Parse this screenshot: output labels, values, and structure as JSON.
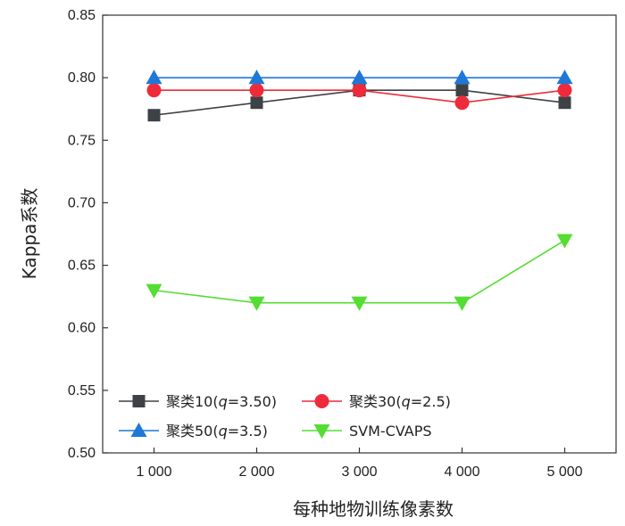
{
  "chart_data": {
    "type": "line",
    "title": "",
    "xlabel": "每种地物训练像素数",
    "ylabel": "Kappa系数",
    "x": [
      1000,
      2000,
      3000,
      4000,
      5000
    ],
    "x_tick_labels": [
      "1 000",
      "2 000",
      "3 000",
      "4 000",
      "5 000"
    ],
    "ylim": [
      0.5,
      0.85
    ],
    "y_ticks": [
      0.5,
      0.55,
      0.6,
      0.65,
      0.7,
      0.75,
      0.8,
      0.85
    ],
    "y_tick_labels": [
      "0.50",
      "0.55",
      "0.60",
      "0.65",
      "0.70",
      "0.75",
      "0.80",
      "0.85"
    ],
    "grid": false,
    "legend_position": "bottom-left",
    "series": [
      {
        "name": "聚类10(q=3.50)",
        "legend_parts": [
          "聚类10(",
          "q",
          "=3.50)"
        ],
        "color": "#3d4246",
        "marker": "square",
        "values": [
          0.77,
          0.78,
          0.79,
          0.79,
          0.78
        ]
      },
      {
        "name": "聚类30(q=2.5)",
        "legend_parts": [
          "聚类30(",
          "q",
          "=2.5)"
        ],
        "color": "#ee2b3b",
        "marker": "circle",
        "values": [
          0.79,
          0.79,
          0.79,
          0.78,
          0.79
        ]
      },
      {
        "name": "聚类50(q=3.5)",
        "legend_parts": [
          "聚类50(",
          "q",
          "=3.5)"
        ],
        "color": "#1f77d8",
        "marker": "triangle-up",
        "values": [
          0.8,
          0.8,
          0.8,
          0.8,
          0.8
        ]
      },
      {
        "name": "SVM-CVAPS",
        "legend_parts": [
          "SVM-CVAPS",
          "",
          ""
        ],
        "color": "#55dd33",
        "marker": "triangle-down",
        "values": [
          0.63,
          0.62,
          0.62,
          0.62,
          0.67
        ]
      }
    ]
  }
}
